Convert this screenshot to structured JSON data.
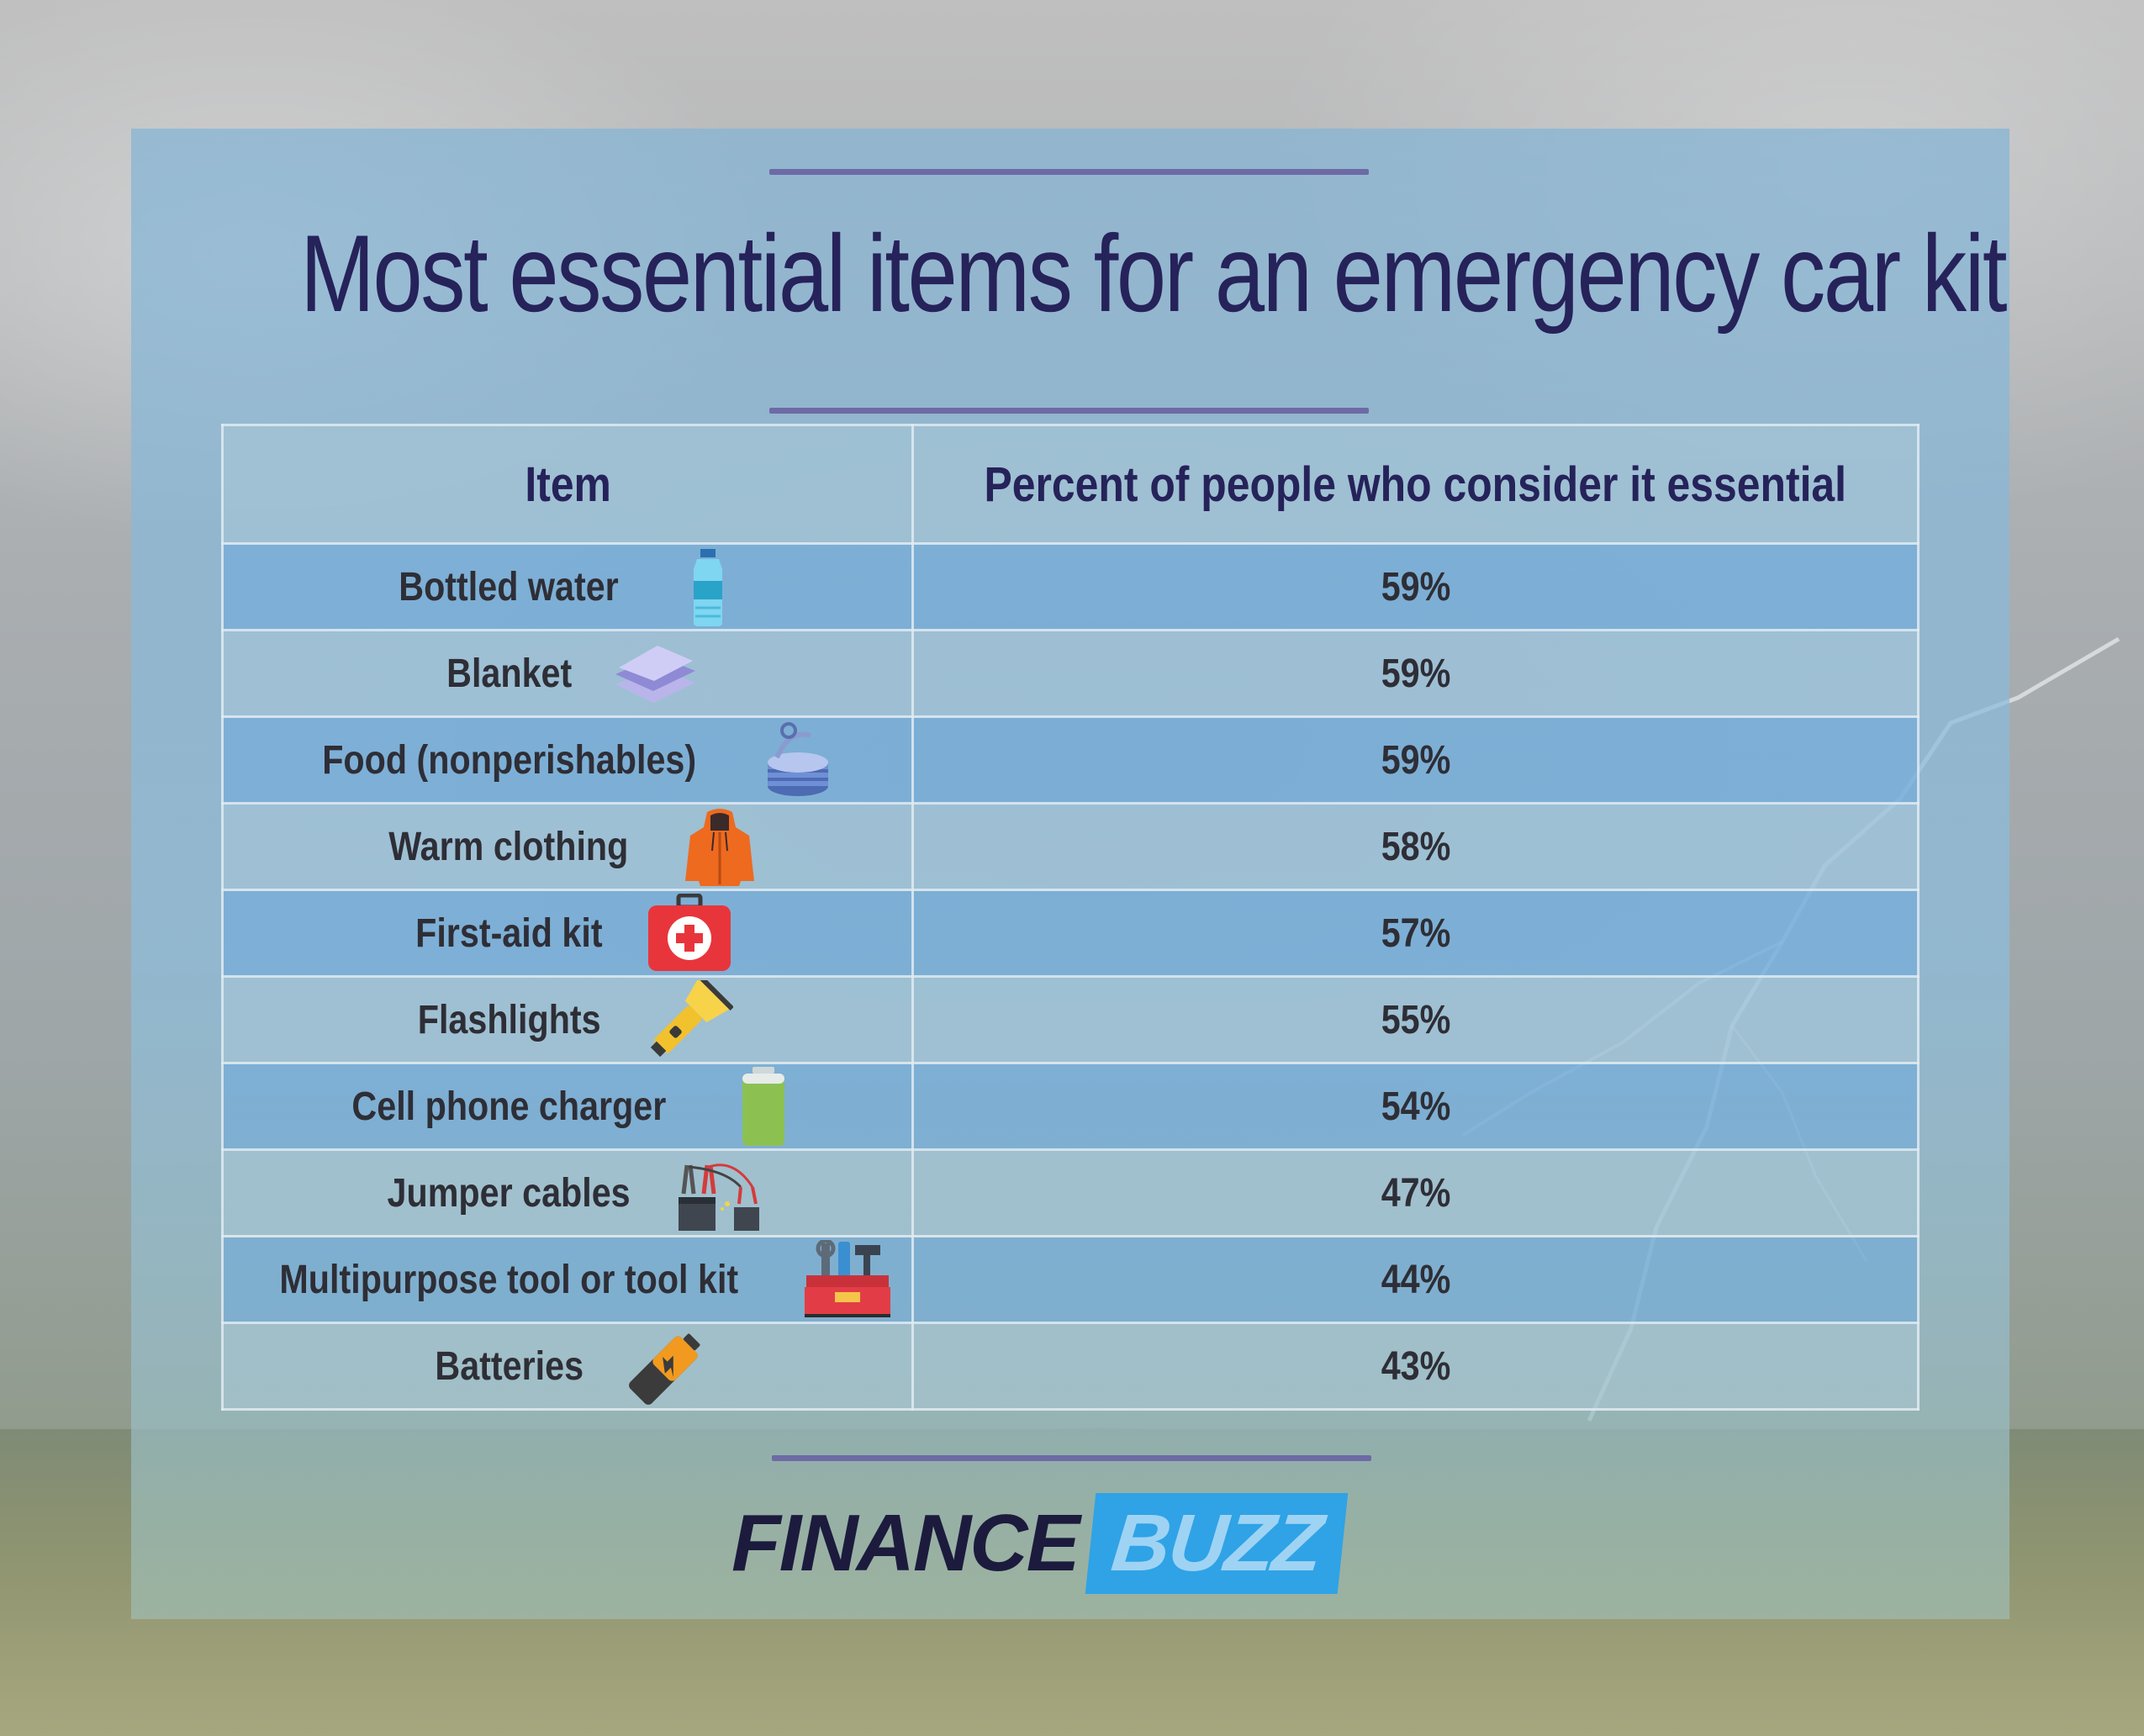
{
  "title": "Most essential items for an emergency car kit",
  "chart_data": {
    "type": "table",
    "title": "Most essential items for an emergency car kit",
    "columns": [
      "Item",
      "Percent of people who consider it essential"
    ],
    "rows": [
      {
        "item": "Bottled water",
        "percent": "59%",
        "icon": "water-bottle-icon"
      },
      {
        "item": "Blanket",
        "percent": "59%",
        "icon": "blanket-icon"
      },
      {
        "item": "Food (nonperishables)",
        "percent": "59%",
        "icon": "canned-food-icon"
      },
      {
        "item": "Warm clothing",
        "percent": "58%",
        "icon": "jacket-icon"
      },
      {
        "item": "First-aid kit",
        "percent": "57%",
        "icon": "first-aid-kit-icon"
      },
      {
        "item": "Flashlights",
        "percent": "55%",
        "icon": "flashlight-icon"
      },
      {
        "item": "Cell phone charger",
        "percent": "54%",
        "icon": "battery-charger-icon"
      },
      {
        "item": "Jumper cables",
        "percent": "47%",
        "icon": "jumper-cables-icon"
      },
      {
        "item": "Multipurpose tool or tool kit",
        "percent": "44%",
        "icon": "toolbox-icon"
      },
      {
        "item": "Batteries",
        "percent": "43%",
        "icon": "battery-icon"
      }
    ]
  },
  "logo": {
    "part1": "FINANCE",
    "part2": "BUZZ"
  },
  "colors": {
    "title": "#26225a",
    "rule": "#6d6aa6",
    "logo_dark": "#1c1b3d",
    "logo_blue": "#2fa3e6"
  }
}
